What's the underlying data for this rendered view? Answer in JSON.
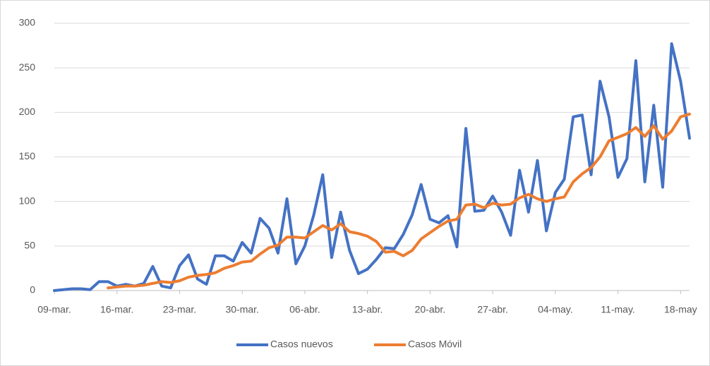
{
  "chart_data": {
    "type": "line",
    "categories": [
      "09-mar.",
      null,
      null,
      null,
      null,
      null,
      null,
      "16-mar.",
      null,
      null,
      null,
      null,
      null,
      null,
      "23-mar.",
      null,
      null,
      null,
      null,
      null,
      null,
      "30-mar.",
      null,
      null,
      null,
      null,
      null,
      null,
      "06-abr.",
      null,
      null,
      null,
      null,
      null,
      null,
      "13-abr.",
      null,
      null,
      null,
      null,
      null,
      null,
      "20-abr.",
      null,
      null,
      null,
      null,
      null,
      null,
      "27-abr.",
      null,
      null,
      null,
      null,
      null,
      null,
      "04-may.",
      null,
      null,
      null,
      null,
      null,
      null,
      "11-may.",
      null,
      null,
      null,
      null,
      null,
      null,
      "18-may",
      null
    ],
    "series": [
      {
        "name": "Casos nuevos",
        "color": "#4472c4",
        "values": [
          0,
          1,
          2,
          2,
          1,
          10,
          10,
          5,
          7,
          5,
          8,
          27,
          5,
          3,
          28,
          40,
          13,
          7,
          39,
          39,
          33,
          54,
          42,
          81,
          70,
          42,
          103,
          30,
          50,
          85,
          130,
          37,
          88,
          45,
          19,
          24,
          35,
          48,
          47,
          63,
          85,
          119,
          80,
          76,
          84,
          49,
          182,
          89,
          90,
          106,
          88,
          62,
          135,
          88,
          146,
          67,
          110,
          125,
          195,
          197,
          130,
          235,
          195,
          127,
          148,
          258,
          122,
          208,
          116,
          277,
          235,
          171
        ]
      },
      {
        "name": "Casos Móvil",
        "color": "#ed7d31",
        "values": [
          null,
          null,
          null,
          null,
          null,
          null,
          3,
          4,
          5,
          5,
          6,
          8,
          10,
          9,
          11,
          15,
          17,
          18,
          20,
          25,
          28,
          32,
          33,
          41,
          48,
          51,
          60,
          60,
          59,
          66,
          73,
          68,
          75,
          66,
          64,
          61,
          55,
          43,
          44,
          39,
          45,
          58,
          65,
          72,
          78,
          80,
          96,
          97,
          93,
          98,
          96,
          97,
          104,
          108,
          103,
          100,
          103,
          105,
          122,
          131,
          138,
          150,
          168,
          172,
          176,
          183,
          173,
          185,
          170,
          179,
          195,
          198
        ]
      }
    ],
    "ylim": [
      0,
      300
    ],
    "yticks": [
      0,
      50,
      100,
      150,
      200,
      250,
      300
    ],
    "grid": true,
    "legend": "bottom"
  }
}
